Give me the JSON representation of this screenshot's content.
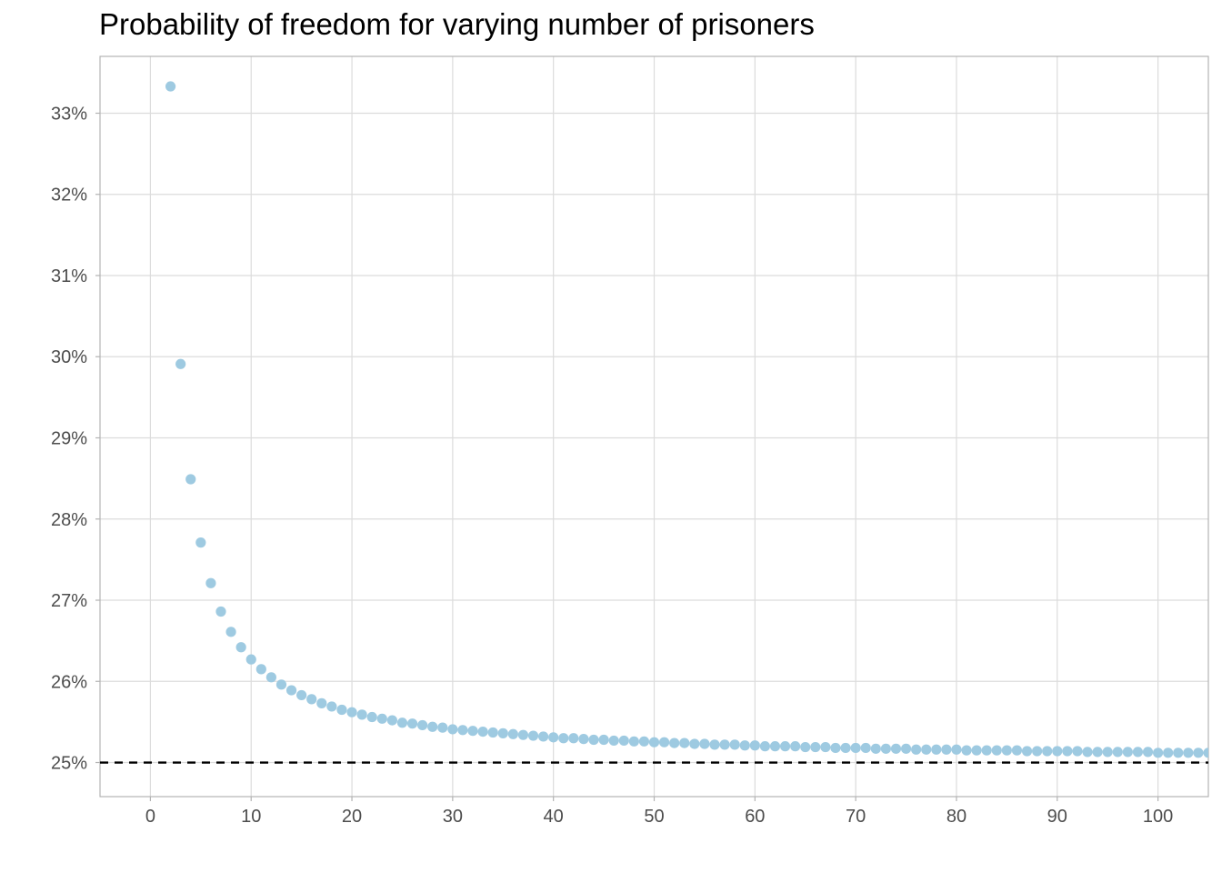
{
  "chart_data": {
    "type": "scatter",
    "title": "Probability of freedom for varying number of prisoners",
    "xlabel": "",
    "ylabel": "",
    "xlim": [
      -5,
      105
    ],
    "ylim": [
      24.58,
      33.7
    ],
    "x_ticks": [
      0,
      10,
      20,
      30,
      40,
      50,
      60,
      70,
      80,
      90,
      100
    ],
    "x_tick_labels": [
      "0",
      "10",
      "20",
      "30",
      "40",
      "50",
      "60",
      "70",
      "80",
      "90",
      "100"
    ],
    "y_ticks": [
      25,
      26,
      27,
      28,
      29,
      30,
      31,
      32,
      33
    ],
    "y_tick_labels": [
      "25%",
      "26%",
      "27%",
      "28%",
      "29%",
      "30%",
      "31%",
      "32%",
      "33%"
    ],
    "grid": true,
    "point_color": "#9ecae1",
    "reference_line": {
      "y": 25,
      "style": "dashed",
      "color": "#000000"
    },
    "series": [
      {
        "x": [
          2,
          3,
          4,
          5,
          6,
          7,
          8,
          9,
          10,
          11,
          12,
          13,
          14,
          15,
          16,
          17,
          18,
          19,
          20,
          21,
          22,
          23,
          24,
          25,
          26,
          27,
          28,
          29,
          30,
          31,
          32,
          33,
          34,
          35,
          36,
          37,
          38,
          39,
          40,
          41,
          42,
          43,
          44,
          45,
          46,
          47,
          48,
          49,
          50,
          51,
          52,
          53,
          54,
          55,
          56,
          57,
          58,
          59,
          60,
          61,
          62,
          63,
          64,
          65,
          66,
          67,
          68,
          69,
          70,
          71,
          72,
          73,
          74,
          75,
          76,
          77,
          78,
          79,
          80,
          81,
          82,
          83,
          84,
          85,
          86,
          87,
          88,
          89,
          90,
          91,
          92,
          93,
          94,
          95,
          96,
          97,
          98,
          99,
          100,
          101,
          102,
          103,
          104,
          105
        ],
        "y": [
          33.33,
          29.91,
          28.49,
          27.71,
          27.21,
          26.86,
          26.61,
          26.42,
          26.27,
          26.15,
          26.05,
          25.96,
          25.89,
          25.83,
          25.78,
          25.73,
          25.69,
          25.65,
          25.62,
          25.59,
          25.56,
          25.54,
          25.52,
          25.49,
          25.48,
          25.46,
          25.44,
          25.43,
          25.41,
          25.4,
          25.39,
          25.38,
          25.37,
          25.36,
          25.35,
          25.34,
          25.33,
          25.32,
          25.31,
          25.3,
          25.3,
          25.29,
          25.28,
          25.28,
          25.27,
          25.27,
          25.26,
          25.26,
          25.25,
          25.25,
          25.24,
          25.24,
          25.23,
          25.23,
          25.22,
          25.22,
          25.22,
          25.21,
          25.21,
          25.2,
          25.2,
          25.2,
          25.2,
          25.19,
          25.19,
          25.19,
          25.18,
          25.18,
          25.18,
          25.18,
          25.17,
          25.17,
          25.17,
          25.17,
          25.16,
          25.16,
          25.16,
          25.16,
          25.16,
          25.15,
          25.15,
          25.15,
          25.15,
          25.15,
          25.15,
          25.14,
          25.14,
          25.14,
          25.14,
          25.14,
          25.14,
          25.13,
          25.13,
          25.13,
          25.13,
          25.13,
          25.13,
          25.13,
          25.12,
          25.12,
          25.12,
          25.12,
          25.12,
          25.12
        ]
      }
    ]
  }
}
